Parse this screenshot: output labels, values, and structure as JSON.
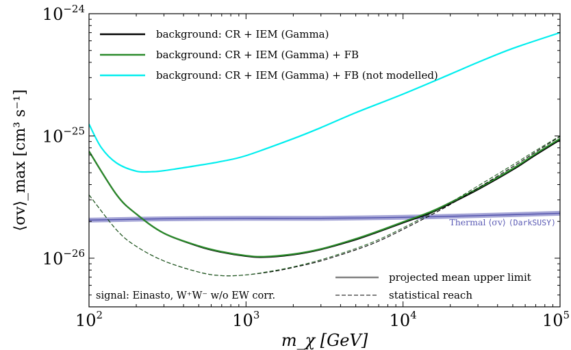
{
  "chart_data": {
    "type": "line",
    "xlabel": "m_χ [GeV]",
    "ylabel": "⟨σv⟩_max [cm³ s⁻¹]",
    "x_scale": "log",
    "y_scale": "log",
    "xlim": [
      100,
      100000
    ],
    "ylim": [
      4e-27,
      1e-24
    ],
    "x_ticks": [
      {
        "value": 100,
        "base": "10",
        "exp": "2"
      },
      {
        "value": 1000,
        "base": "10",
        "exp": "3"
      },
      {
        "value": 10000,
        "base": "10",
        "exp": "4"
      },
      {
        "value": 100000,
        "base": "10",
        "exp": "5"
      }
    ],
    "y_ticks": [
      {
        "value": 1e-26,
        "base": "10",
        "exp": "−26"
      },
      {
        "value": 1e-25,
        "base": "10",
        "exp": "−25"
      },
      {
        "value": 1e-24,
        "base": "10",
        "exp": "−24"
      }
    ],
    "grid": false,
    "legend_placement": "top-left",
    "series": [
      {
        "name": "background: CR + IEM (Gamma)",
        "color": "#000000",
        "style": "solid",
        "x": [
          100,
          150,
          200,
          300,
          500,
          700,
          1000,
          1300,
          2000,
          3000,
          5000,
          7000,
          10000,
          15000,
          20000,
          30000,
          50000,
          70000,
          100000
        ],
        "y": [
          7.5e-26,
          3.3e-26,
          2.3e-26,
          1.6e-26,
          1.25e-26,
          1.12e-26,
          1.04e-26,
          1.02e-26,
          1.07e-26,
          1.18e-26,
          1.42e-26,
          1.65e-26,
          1.95e-26,
          2.35e-26,
          2.8e-26,
          3.65e-26,
          5.3e-26,
          7e-26,
          9.3e-26
        ]
      },
      {
        "name": "background: CR + IEM (Gamma) + FB",
        "color": "#2a8a2a",
        "style": "solid",
        "x": [
          100,
          150,
          200,
          300,
          500,
          700,
          1000,
          1300,
          2000,
          3000,
          5000,
          7000,
          10000,
          15000,
          20000,
          30000,
          50000,
          70000,
          100000
        ],
        "y": [
          7.5e-26,
          3.3e-26,
          2.3e-26,
          1.6e-26,
          1.26e-26,
          1.13e-26,
          1.05e-26,
          1.03e-26,
          1.08e-26,
          1.19e-26,
          1.44e-26,
          1.67e-26,
          1.98e-26,
          2.4e-26,
          2.85e-26,
          3.72e-26,
          5.4e-26,
          7.15e-26,
          9.5e-26
        ]
      },
      {
        "name": "background: CR + IEM (Gamma) + FB (not modelled)",
        "color": "#00eeee",
        "style": "solid",
        "x": [
          100,
          120,
          150,
          200,
          250,
          300,
          500,
          700,
          1000,
          2000,
          3000,
          5000,
          10000,
          20000,
          30000,
          50000,
          100000
        ],
        "y": [
          1.25e-25,
          8e-26,
          6e-26,
          5.15e-26,
          5.1e-26,
          5.2e-26,
          5.75e-26,
          6.2e-26,
          6.9e-26,
          9.5e-26,
          1.17e-25,
          1.55e-25,
          2.2e-25,
          3.2e-25,
          4e-25,
          5.2e-25,
          7e-25
        ]
      },
      {
        "name": "",
        "color": "#000000",
        "style": "dashed",
        "x": [
          100,
          150,
          200,
          300,
          500,
          700,
          1000,
          1500,
          2000,
          3000,
          5000,
          7000,
          10000,
          15000,
          20000,
          30000,
          50000,
          70000,
          100000
        ],
        "y": [
          3.3e-26,
          1.7e-26,
          1.25e-26,
          9.5e-27,
          7.7e-27,
          7.2e-27,
          7.3e-27,
          7.8e-27,
          8.4e-27,
          9.5e-27,
          1.17e-26,
          1.38e-26,
          1.72e-26,
          2.25e-26,
          2.75e-26,
          3.75e-26,
          5.6e-26,
          7.4e-26,
          9.9e-26
        ]
      },
      {
        "name": "",
        "color": "#1f5e1f",
        "style": "dashed",
        "x": [
          100,
          150,
          200,
          300,
          500,
          700,
          1000,
          1500,
          2000,
          3000,
          5000,
          7000,
          10000,
          15000,
          20000,
          30000,
          50000,
          70000,
          100000
        ],
        "y": [
          3.3e-26,
          1.7e-26,
          1.25e-26,
          9.5e-27,
          7.7e-27,
          7.2e-27,
          7.3e-27,
          7.9e-27,
          8.5e-27,
          9.7e-27,
          1.2e-26,
          1.42e-26,
          1.77e-26,
          2.32e-26,
          2.85e-26,
          3.9e-26,
          5.8e-26,
          7.6e-26,
          1e-25
        ]
      }
    ],
    "thermal_band": {
      "color": "#5a5ab4",
      "x": [
        100,
        300,
        1000,
        3000,
        10000,
        30000,
        100000
      ],
      "y": [
        2.05e-26,
        2.1e-26,
        2.12e-26,
        2.12e-26,
        2.16e-26,
        2.23e-26,
        2.33e-26
      ],
      "label_main": "Thermal ⟨σv⟩ ",
      "label_code": "(DarkSUSY)"
    },
    "style_legend": [
      {
        "label": "projected mean upper limit",
        "style": "solid",
        "color": "#808080"
      },
      {
        "label": "statistical reach",
        "style": "dashed",
        "color": "#000000"
      }
    ],
    "annotation": "signal: Einasto, W⁺W⁻ w/o EW corr."
  }
}
